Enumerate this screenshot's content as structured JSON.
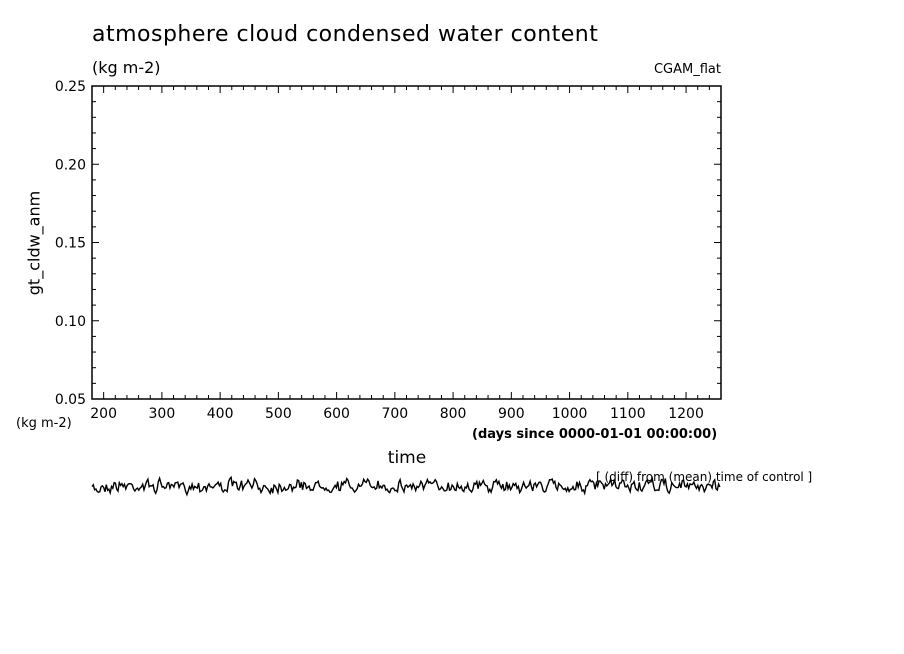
{
  "chart_data": {
    "type": "line",
    "title": "atmosphere cloud condensed water content",
    "subtitle": "(kg m-2)",
    "experiment_label": "CGAM_flat",
    "ylabel": "gt_cldw_anm",
    "yunit": "(kg m-2)",
    "xlabel": "time",
    "xunit": "(days since 0000-01-01 00:00:00)",
    "note": "[ (diff) from (mean) time of control ]",
    "xlim": [
      180,
      1260
    ],
    "ylim": [
      0.05,
      0.25
    ],
    "xticks": [
      "200",
      "300",
      "400",
      "500",
      "600",
      "700",
      "800",
      "900",
      "1000",
      "1100",
      "1200"
    ],
    "yticks": [
      "0.05",
      "0.10",
      "0.15",
      "0.20",
      "0.25"
    ],
    "grid": false,
    "color": "#000000",
    "series_note": "anomaly trace drawn below the axes"
  }
}
